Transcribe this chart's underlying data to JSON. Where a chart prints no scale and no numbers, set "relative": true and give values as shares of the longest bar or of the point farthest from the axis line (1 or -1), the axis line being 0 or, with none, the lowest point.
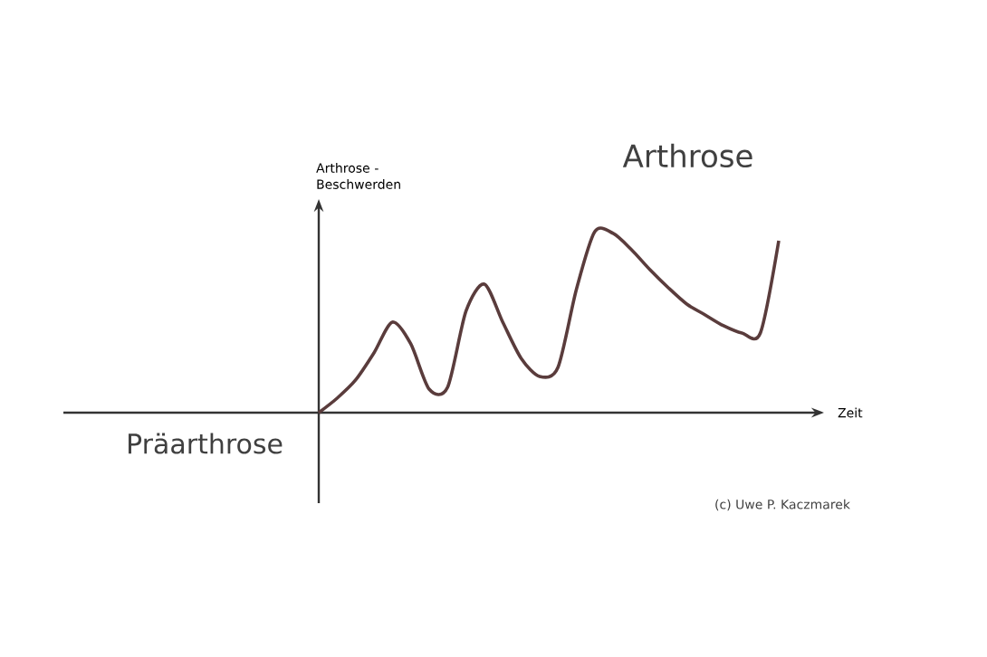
{
  "chart_data": {
    "type": "line",
    "relative": true,
    "xlabel": "Zeit",
    "ylabel": "Arthrose - Beschwerden",
    "categories": [
      null,
      null,
      null,
      null,
      null,
      null,
      null,
      null,
      null,
      null,
      null,
      null,
      null,
      null,
      null,
      null,
      null,
      null,
      null,
      null,
      null,
      null,
      null,
      null,
      null,
      null
    ],
    "series": [
      {
        "color": "#5a3c3c",
        "values": [
          0,
          0.08,
          0.18,
          0.33,
          0.5,
          0.38,
          0.13,
          0.14,
          0.56,
          0.71,
          0.5,
          0.3,
          0.2,
          0.25,
          0.68,
          1,
          0.99,
          0.9,
          0.79,
          0.69,
          0.6,
          0.54,
          0.48,
          0.44,
          0.44,
          0.95
        ]
      }
    ],
    "annotations": [
      "Arthrose",
      "Präarthrose",
      "(c) Uwe P. Kaczmarek"
    ]
  }
}
